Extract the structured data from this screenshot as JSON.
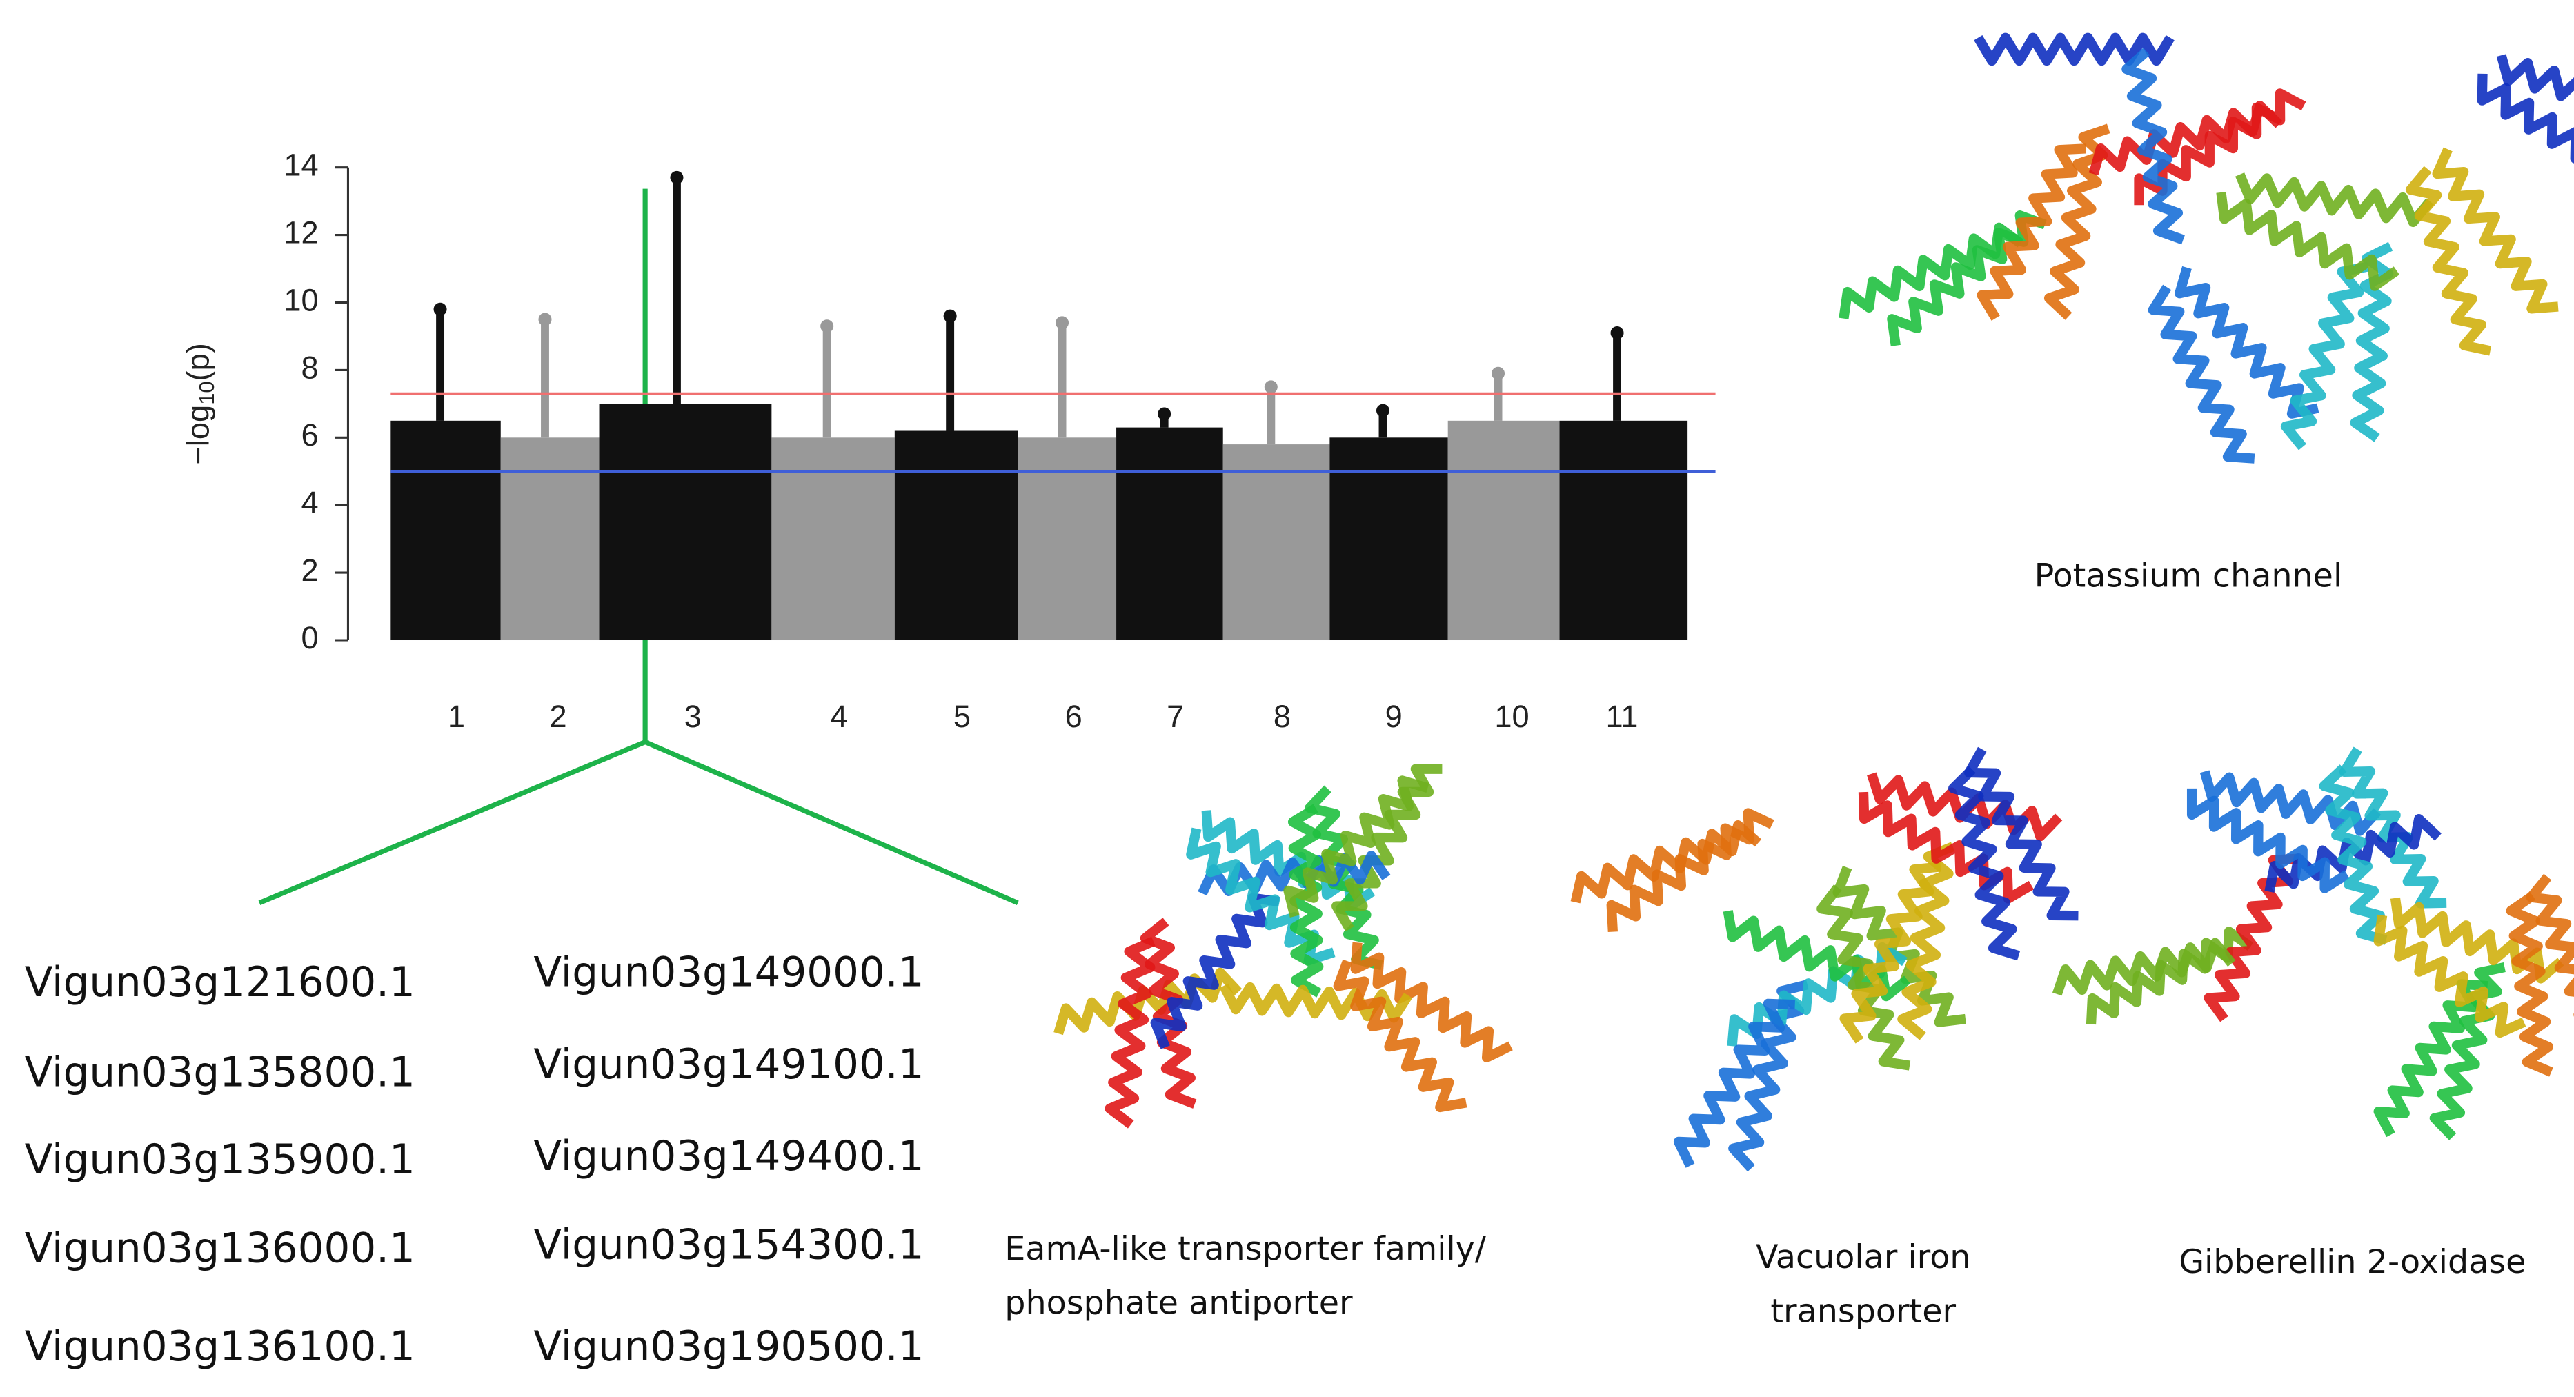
{
  "chart_data": {
    "type": "manhattan",
    "ylabel": {
      "prefix": "−log",
      "sub": "10",
      "suffix": "(p)"
    },
    "categories": [
      "1",
      "2",
      "3",
      "4",
      "5",
      "6",
      "7",
      "8",
      "9",
      "10",
      "11"
    ],
    "values": [
      9.8,
      9.5,
      13.7,
      9.3,
      9.6,
      9.4,
      6.7,
      7.5,
      6.8,
      7.9,
      9.1
    ],
    "bulk_values": [
      6.5,
      6,
      7,
      6,
      6.2,
      6,
      6.3,
      5.8,
      6,
      6.5,
      6.5
    ],
    "colors": [
      "#111111",
      "#999999"
    ],
    "ylim": [
      0,
      14
    ],
    "yticks": [
      0,
      2,
      4,
      6,
      8,
      10,
      12,
      14
    ],
    "hlines": [
      {
        "value": 7.3,
        "color": "#f07070"
      },
      {
        "value": 5,
        "color": "#3f5fd8"
      }
    ]
  },
  "genes": [
    [
      "Vigun03g121600.1",
      "Vigun03g135800.1",
      "Vigun03g135900.1",
      "Vigun03g136000.1",
      "Vigun03g136100.1"
    ],
    [
      "Vigun03g149000.1",
      "Vigun03g149100.1",
      "Vigun03g149400.1",
      "Vigun03g154300.1",
      "Vigun03g190500.1"
    ]
  ],
  "proteins": [
    [
      "Potassium channel"
    ],
    [
      "EamA-like transporter family/",
      "phosphate antiporter"
    ],
    [
      "Vacuolar iron",
      "transporter"
    ],
    [
      "Gibberellin 2-oxidase"
    ]
  ]
}
